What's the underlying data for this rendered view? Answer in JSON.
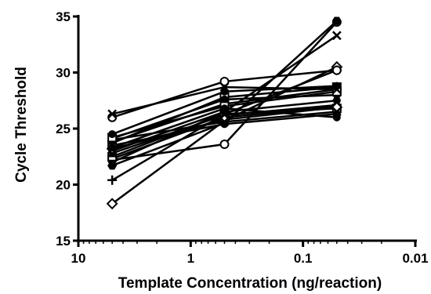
{
  "chart_data": {
    "type": "line",
    "title": "",
    "xlabel": "Template Concentration (ng/reaction)",
    "ylabel": "Cycle Threshold",
    "x_scale": "log10-reversed",
    "xlim": [
      10,
      0.01
    ],
    "ylim": [
      15,
      35
    ],
    "x_ticks": [
      10,
      1,
      0.1,
      0.01
    ],
    "x_tick_labels": [
      "10",
      "1",
      "0.1",
      "0.01"
    ],
    "y_ticks": [
      15,
      20,
      25,
      30,
      35
    ],
    "y_tick_labels": [
      "15",
      "20",
      "25",
      "30",
      "35"
    ],
    "x": [
      5,
      0.5,
      0.05
    ],
    "grid": false,
    "legend": "none",
    "colors": {
      "line": "#000000",
      "axis": "#000000"
    },
    "series": [
      {
        "marker": "diamond",
        "values": [
          18.3,
          25.7,
          30.5
        ]
      },
      {
        "marker": "plus",
        "values": [
          20.4,
          26.3,
          30.2
        ]
      },
      {
        "marker": "circle-open",
        "values": [
          22.2,
          23.6,
          34.5
        ]
      },
      {
        "marker": "x",
        "values": [
          22.0,
          26.5,
          33.3
        ]
      },
      {
        "marker": "hexagon",
        "values": [
          21.7,
          25.5,
          34.6
        ]
      },
      {
        "marker": "circle",
        "values": [
          22.3,
          26.0,
          27.0
        ]
      },
      {
        "marker": "square-open",
        "values": [
          22.5,
          26.3,
          26.8
        ]
      },
      {
        "marker": "triangle",
        "values": [
          22.8,
          26.2,
          27.1
        ]
      },
      {
        "marker": "circle",
        "values": [
          23.0,
          26.5,
          27.5
        ]
      },
      {
        "marker": "diamond",
        "values": [
          23.2,
          25.8,
          26.9
        ]
      },
      {
        "marker": "circle",
        "values": [
          23.5,
          25.4,
          26.3
        ]
      },
      {
        "marker": "square-open",
        "values": [
          23.7,
          27.8,
          28.7
        ]
      },
      {
        "marker": "circle",
        "values": [
          23.8,
          27.2,
          28.5
        ]
      },
      {
        "marker": "x",
        "values": [
          24.0,
          25.6,
          26.5
        ]
      },
      {
        "marker": "circle",
        "values": [
          24.1,
          27.6,
          28.0
        ]
      },
      {
        "marker": "square-open",
        "values": [
          24.2,
          27.0,
          28.3
        ]
      },
      {
        "marker": "circle",
        "values": [
          24.5,
          28.3,
          28.8
        ]
      },
      {
        "marker": "circle-open",
        "values": [
          26.0,
          29.2,
          30.2
        ]
      },
      {
        "marker": "x",
        "values": [
          26.3,
          28.7,
          28.5
        ]
      },
      {
        "marker": "circle",
        "values": [
          23.3,
          26.8,
          26.0
        ]
      }
    ]
  }
}
